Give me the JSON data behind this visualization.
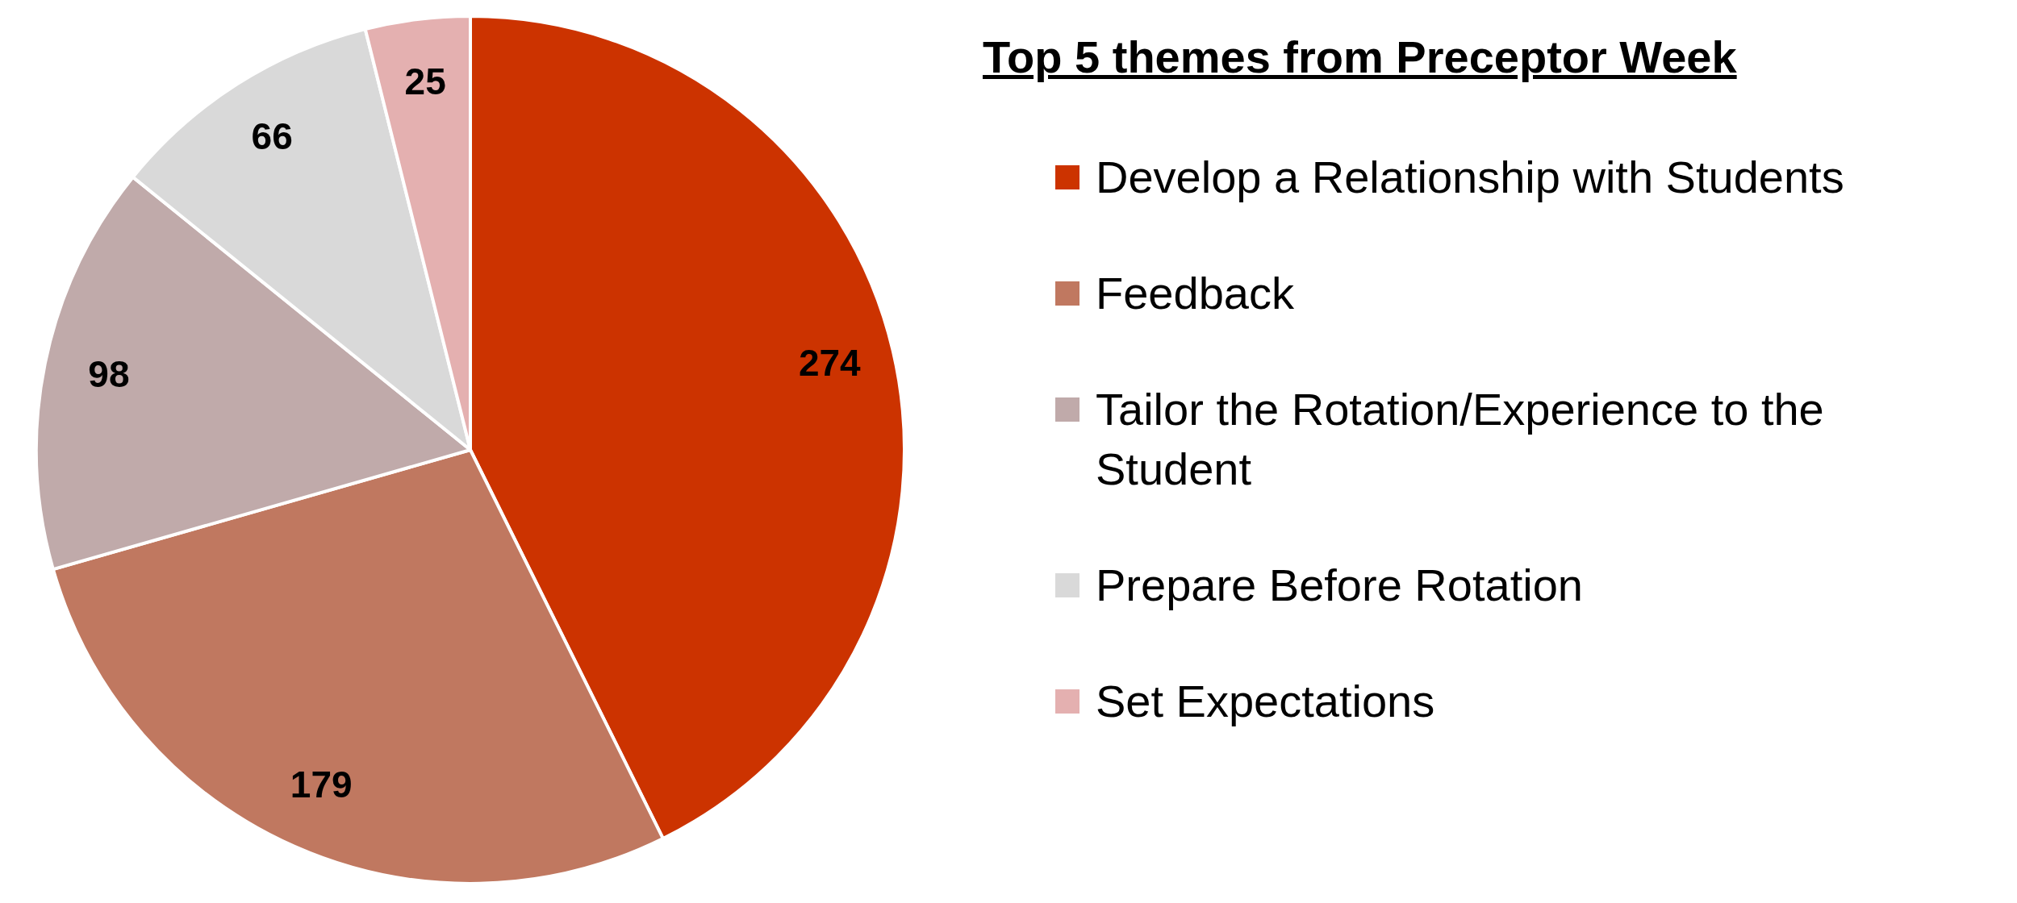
{
  "chart_data": {
    "type": "pie",
    "title": "Top 5 themes from Preceptor Week",
    "categories": [
      "Develop a Relationship with Students",
      "Feedback",
      "Tailor the Rotation/Experience to the Student",
      "Prepare Before Rotation",
      "Set Expectations"
    ],
    "values": [
      274,
      179,
      98,
      66,
      25
    ],
    "colors": [
      "#cc3300",
      "#c07860",
      "#c0aaaa",
      "#d9d9d9",
      "#e4b0b0"
    ],
    "data_labels": true,
    "legend": "right"
  }
}
